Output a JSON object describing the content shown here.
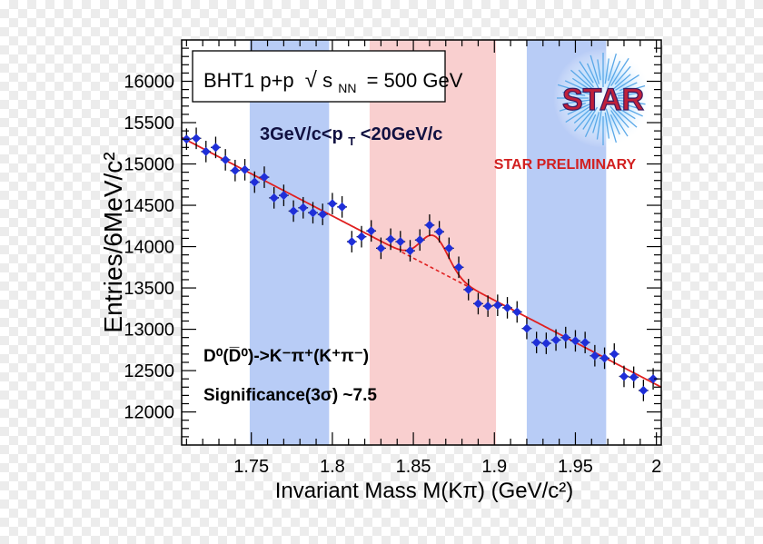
{
  "chart_data": {
    "type": "scatter",
    "title": "",
    "xlabel": "Invariant Mass M(Kπ) (GeV/c²)",
    "ylabel": "Entries/6MeV/c²",
    "xlim": [
      1.707,
      2.003
    ],
    "ylim": [
      11600,
      16500
    ],
    "x_ticks": [
      1.75,
      1.8,
      1.85,
      1.9,
      1.95,
      2.0
    ],
    "x_tick_labels": [
      "1.75",
      "1.8",
      "1.85",
      "1.9",
      "1.95",
      "2"
    ],
    "y_ticks": [
      12000,
      12500,
      13000,
      13500,
      14000,
      14500,
      15000,
      15500,
      16000
    ],
    "y_tick_labels": [
      "12000",
      "12500",
      "13000",
      "13500",
      "14000",
      "14500",
      "15000",
      "15500",
      "16000"
    ],
    "bands": [
      {
        "x": [
          1.749,
          1.798
        ],
        "color": "#b8ccf6"
      },
      {
        "x": [
          1.823,
          1.901
        ],
        "color": "#f9cfcf"
      },
      {
        "x": [
          1.92,
          1.969
        ],
        "color": "#b8ccf6"
      }
    ],
    "series": [
      {
        "x": [
          1.71,
          1.716,
          1.722,
          1.728,
          1.734,
          1.74,
          1.746,
          1.752,
          1.758,
          1.764,
          1.77,
          1.776,
          1.782,
          1.788,
          1.794,
          1.8,
          1.806,
          1.812,
          1.818,
          1.824,
          1.83,
          1.836,
          1.842,
          1.848,
          1.854,
          1.86,
          1.866,
          1.872,
          1.878,
          1.884,
          1.89,
          1.896,
          1.902,
          1.908,
          1.914,
          1.92,
          1.926,
          1.932,
          1.938,
          1.944,
          1.95,
          1.956,
          1.962,
          1.968,
          1.974,
          1.98,
          1.986,
          1.992,
          1.998
        ],
        "y": [
          15300,
          15310,
          15150,
          15200,
          15050,
          14920,
          14930,
          14780,
          14840,
          14590,
          14620,
          14430,
          14470,
          14410,
          14390,
          14520,
          14480,
          14060,
          14120,
          14190,
          13980,
          14090,
          14060,
          13950,
          14080,
          14260,
          14180,
          13980,
          13750,
          13480,
          13310,
          13280,
          13290,
          13260,
          13210,
          13010,
          12840,
          12830,
          12870,
          12900,
          12860,
          12840,
          12680,
          12650,
          12700,
          12430,
          12420,
          12260,
          12400
        ]
      }
    ],
    "y_error": 130,
    "background_fit": {
      "x0": 1.707,
      "y0": 15320,
      "x1": 2.003,
      "y1": 12300,
      "dashed_from": 1.843,
      "dashed_to": 1.885
    },
    "signal_peak": {
      "center": 1.863,
      "amplitude": 400,
      "sigma": 0.0085
    },
    "colors": {
      "points": "#1f2fd8",
      "fit": "#e02020",
      "frame": "#000000"
    }
  },
  "annotations": {
    "box_label": "BHT1 p+p",
    "sqrt_symbol": "√",
    "energy_s": "s",
    "energy_sub": "NN",
    "energy_value": "= 500 GeV",
    "pt_range_a": "3GeV/c<p",
    "pt_range_sub": "T",
    "pt_range_b": "<20GeV/c",
    "decay_text": "D⁰(D̅⁰)->K⁻π⁺(K⁺π⁻)",
    "significance": "Significance(3σ) ~7.5",
    "preliminary": "STAR PRELIMINARY",
    "logo_text": "STAR"
  }
}
